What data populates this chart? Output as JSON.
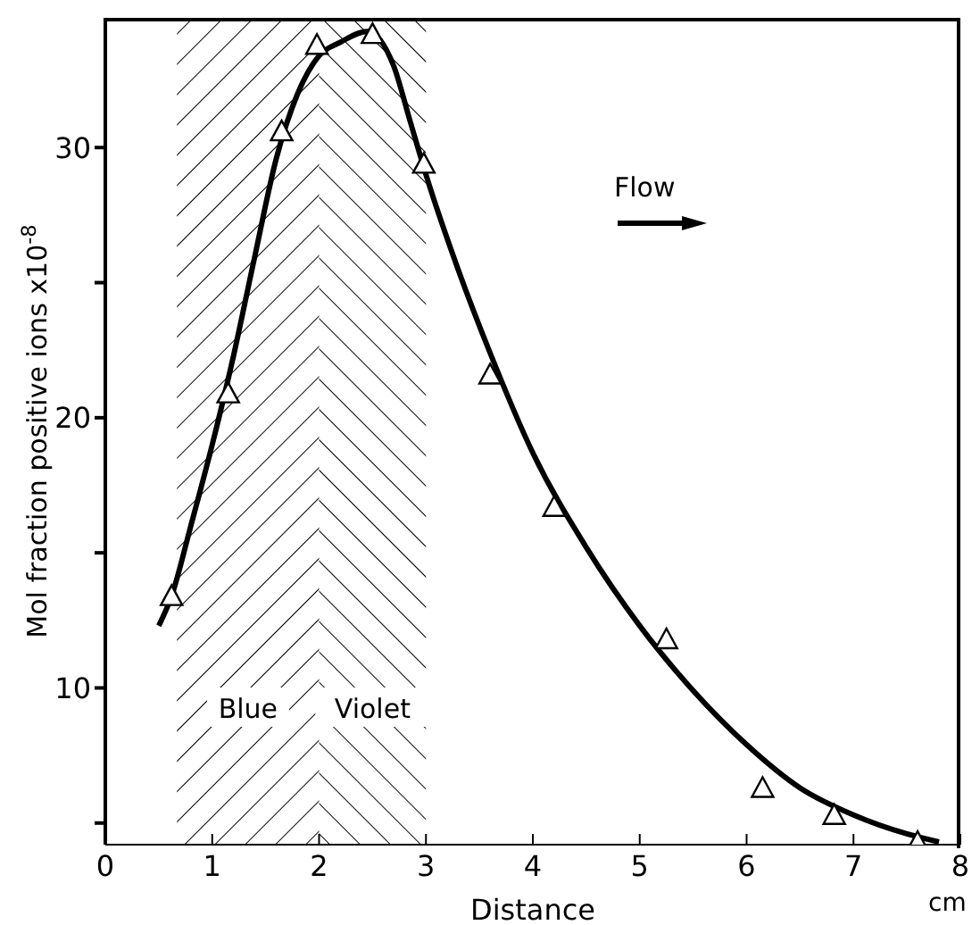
{
  "chart_data": {
    "type": "scatter",
    "xlabel": "Distance",
    "ylabel": "Mol fraction positive ions x10$^{-8}$",
    "annotations": [
      "Flow",
      "cm"
    ],
    "xlim": [
      0,
      8
    ],
    "xticks": [
      0,
      1,
      2,
      3,
      4,
      5,
      6,
      7,
      8
    ],
    "ylim": [
      4.2,
      34.8
    ],
    "yticks": [
      {
        "value": 5,
        "label": null
      },
      10,
      {
        "value": 15,
        "label": null
      },
      20,
      {
        "value": 25,
        "label": null
      },
      30
    ],
    "marker": "triangle",
    "bands": [
      {
        "axis": "x",
        "from": 0.67,
        "to": 2,
        "label": "Blue",
        "color": "#000000"
      },
      {
        "axis": "x",
        "from": 2,
        "to": 3,
        "label": "Violet",
        "color": "#000000"
      }
    ],
    "series": [
      {
        "color": "#000000",
        "x": [
          0.62,
          1.15,
          1.65,
          1.98,
          2.5,
          2.98,
          3.6,
          4.2,
          5.25,
          6.15,
          6.82,
          7.6
        ],
        "values": [
          13.4,
          20.9,
          30.6,
          33.8,
          34.2,
          29.4,
          21.6,
          16.7,
          11.8,
          6.3,
          5.3,
          4.3
        ]
      },
      {
        "type": "line",
        "color": "#000000",
        "marker": "none",
        "x": [
          0.5,
          0.62,
          0.8,
          1,
          1.2,
          1.4,
          1.6,
          1.8,
          2,
          2.2,
          2.45,
          2.7,
          2.85,
          3,
          3.3,
          3.6,
          4,
          4.5,
          5,
          5.5,
          6,
          6.5,
          7,
          7.5,
          7.8
        ],
        "values": [
          12.3,
          13.4,
          16,
          19,
          22.3,
          26,
          29.6,
          32,
          33.4,
          33.9,
          34.3,
          33,
          31,
          29,
          25.5,
          22.4,
          18.7,
          15.2,
          12.3,
          9.9,
          7.9,
          6.3,
          5.3,
          4.6,
          4.3
        ]
      }
    ]
  }
}
